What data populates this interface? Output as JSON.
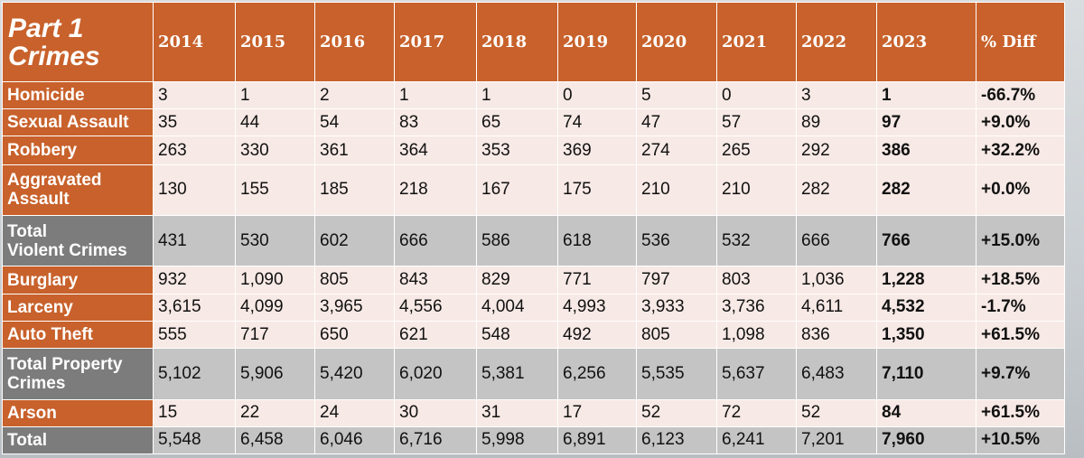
{
  "table": {
    "corner_line1": "Part 1",
    "corner_line2": "Crimes",
    "headers": [
      "2014",
      "2015",
      "2016",
      "2017",
      "2018",
      "2019",
      "2020",
      "2021",
      "2022",
      "2023",
      "% Diff"
    ],
    "rows": [
      {
        "label": "Homicide",
        "values": [
          "3",
          "1",
          "2",
          "1",
          "1",
          "0",
          "5",
          "0",
          "3",
          "1",
          "-66.7%"
        ]
      },
      {
        "label": "Sexual Assault",
        "values": [
          "35",
          "44",
          "54",
          "83",
          "65",
          "74",
          "47",
          "57",
          "89",
          "97",
          "+9.0%"
        ]
      },
      {
        "label": "Robbery",
        "values": [
          "263",
          "330",
          "361",
          "364",
          "353",
          "369",
          "274",
          "265",
          "292",
          "386",
          "+32.2%"
        ]
      },
      {
        "label_line1": "Aggravated",
        "label_line2": "Assault",
        "values": [
          "130",
          "155",
          "185",
          "218",
          "167",
          "175",
          "210",
          "210",
          "282",
          "282",
          "+0.0%"
        ]
      },
      {
        "label_line1": "Total",
        "label_line2": "Violent Crimes",
        "values": [
          "431",
          "530",
          "602",
          "666",
          "586",
          "618",
          "536",
          "532",
          "666",
          "766",
          "+15.0%"
        ]
      },
      {
        "label": "Burglary",
        "values": [
          "932",
          "1,090",
          "805",
          "843",
          "829",
          "771",
          "797",
          "803",
          "1,036",
          "1,228",
          "+18.5%"
        ]
      },
      {
        "label": "Larceny",
        "values": [
          "3,615",
          "4,099",
          "3,965",
          "4,556",
          "4,004",
          "4,993",
          "3,933",
          "3,736",
          "4,611",
          "4,532",
          "-1.7%"
        ]
      },
      {
        "label": "Auto Theft",
        "values": [
          "555",
          "717",
          "650",
          "621",
          "548",
          "492",
          "805",
          "1,098",
          "836",
          "1,350",
          "+61.5%"
        ]
      },
      {
        "label_line1": "Total Property",
        "label_line2": "Crimes",
        "values": [
          "5,102",
          "5,906",
          "5,420",
          "6,020",
          "5,381",
          "6,256",
          "5,535",
          "5,637",
          "6,483",
          "7,110",
          "+9.7%"
        ]
      },
      {
        "label": "Arson",
        "values": [
          "15",
          "22",
          "24",
          "30",
          "31",
          "17",
          "52",
          "72",
          "52",
          "84",
          "+61.5%"
        ]
      },
      {
        "label": "Total",
        "values": [
          "5,548",
          "6,458",
          "6,046",
          "6,716",
          "5,998",
          "6,891",
          "6,123",
          "6,241",
          "7,201",
          "7,960",
          "+10.5%"
        ]
      }
    ]
  },
  "colors": {
    "header_orange": "#c8612b",
    "row_light": "#f7e9e5",
    "row_gray": "#c4c4c4",
    "label_gray": "#7c7c7c"
  }
}
